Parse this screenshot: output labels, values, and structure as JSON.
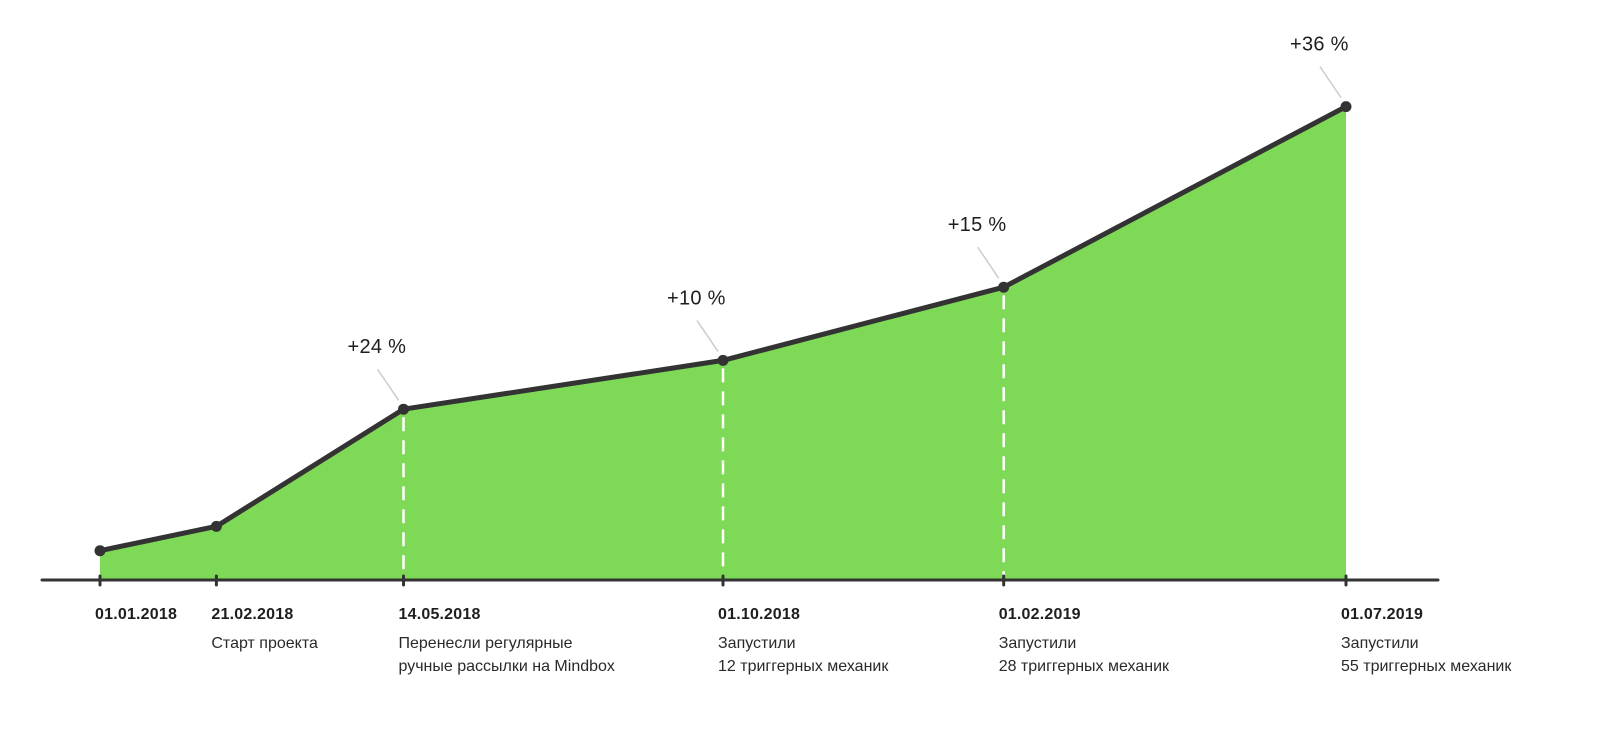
{
  "chart_data": {
    "type": "area",
    "title": "",
    "xlabel": "",
    "ylabel": "",
    "grid": false,
    "legend": "none",
    "x": [
      "01.01.2018",
      "21.02.2018",
      "14.05.2018",
      "01.10.2018",
      "01.02.2019",
      "01.07.2019"
    ],
    "values": [
      6,
      11,
      35,
      45,
      60,
      97
    ],
    "ylim": [
      0,
      100
    ],
    "events": [
      {
        "date": "01.01.2018",
        "lines": []
      },
      {
        "date": "21.02.2018",
        "lines": [
          "Старт проекта"
        ]
      },
      {
        "date": "14.05.2018",
        "lines": [
          "Перенесли регулярные",
          "ручные рассылки на Mindbox"
        ]
      },
      {
        "date": "01.10.2018",
        "lines": [
          "Запустили",
          "12 триггерных механик"
        ]
      },
      {
        "date": "01.02.2019",
        "lines": [
          "Запустили",
          "28 триггерных механик"
        ]
      },
      {
        "date": "01.07.2019",
        "lines": [
          "Запустили",
          "55 триггерных механик"
        ]
      }
    ],
    "annotations": [
      {
        "point_index": 2,
        "text": "+24 %"
      },
      {
        "point_index": 3,
        "text": "+10 %"
      },
      {
        "point_index": 4,
        "text": "+15 %"
      },
      {
        "point_index": 5,
        "text": "+36 %"
      }
    ],
    "colors": {
      "area": "#7ed957",
      "line": "#333333",
      "axis": "#333333",
      "dashed_guides": "#ffffff",
      "leader_lines": "#cccccc"
    }
  }
}
